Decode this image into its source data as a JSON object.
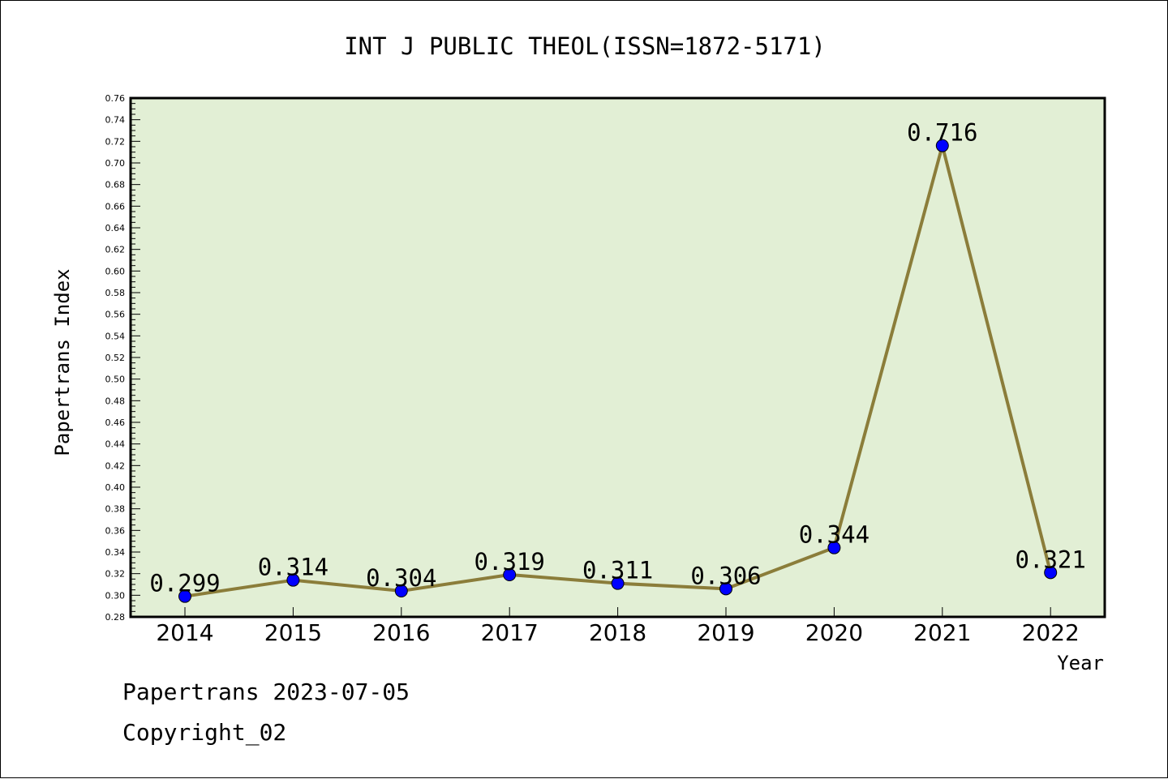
{
  "chart_data": {
    "type": "line",
    "title": "INT J PUBLIC THEOL(ISSN=1872-5171)",
    "xlabel": "Year",
    "ylabel": "Papertrans Index",
    "categories": [
      "2014",
      "2015",
      "2016",
      "2017",
      "2018",
      "2019",
      "2020",
      "2021",
      "2022"
    ],
    "series": [
      {
        "values": [
          0.299,
          0.314,
          0.304,
          0.319,
          0.311,
          0.306,
          0.344,
          0.716,
          0.321
        ],
        "labels": [
          "0.299",
          "0.314",
          "0.304",
          "0.319",
          "0.311",
          "0.306",
          "0.344",
          "0.716",
          "0.321"
        ],
        "line_color": "#8b7d3a",
        "marker_color": "#0000ff"
      }
    ],
    "ylim": [
      0.28,
      0.76
    ],
    "yticks": [
      "0.28",
      "0.30",
      "0.32",
      "0.34",
      "0.36",
      "0.38",
      "0.40",
      "0.42",
      "0.44",
      "0.46",
      "0.48",
      "0.50",
      "0.52",
      "0.54",
      "0.56",
      "0.58",
      "0.60",
      "0.62",
      "0.64",
      "0.66",
      "0.68",
      "0.70",
      "0.72",
      "0.74",
      "0.76"
    ],
    "plot_background": "#e2efd5",
    "grid": false,
    "legend": "none"
  },
  "footer": {
    "line1": "Papertrans 2023-07-05",
    "line2": "Copyright_02"
  }
}
